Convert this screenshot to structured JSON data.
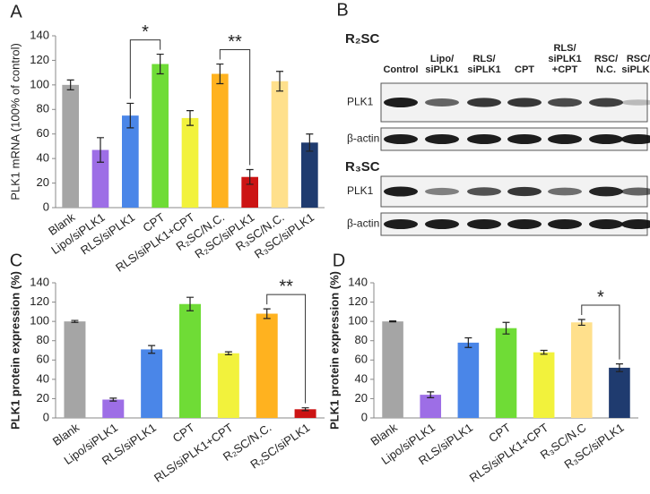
{
  "chart_data": [
    {
      "type": "bar",
      "panel_label": "A",
      "y_label": "PLK1 mRNA (100% of control)",
      "categories": [
        "Blank",
        "Lipo/siPLK1",
        "RLS/siPLK1",
        "CPT",
        "RLS/siPLK1+CPT",
        "R₂SC/N.C.",
        "R₂SC/siPLK1",
        "R₃SC/N.C.",
        "R₃SC/siPLK1"
      ],
      "values": [
        100,
        47,
        75,
        117,
        73,
        109,
        25,
        103,
        53
      ],
      "errors": [
        4,
        10,
        10,
        8,
        6,
        8,
        6,
        8,
        7
      ],
      "colors": [
        "#a5a5a5",
        "#9d6ee6",
        "#4a86e8",
        "#6fdc36",
        "#f2f23c",
        "#ffb21f",
        "#cc1414",
        "#ffe08c",
        "#1f3b6f"
      ],
      "ylim": [
        0,
        140
      ],
      "yticks": [
        0,
        20,
        40,
        60,
        80,
        100,
        120,
        140
      ],
      "annotations": [
        {
          "text": "*",
          "between": [
            "RLS/siPLK1",
            "CPT"
          ]
        },
        {
          "text": "**",
          "between": [
            "R₂SC/N.C.",
            "R₂SC/siPLK1"
          ]
        }
      ]
    },
    {
      "type": "bar",
      "panel_label": "C",
      "y_label": "PLK1 protein expression (%)",
      "categories": [
        "Blank",
        "Lipo/siPLK1",
        "RLS/siPLK1",
        "CPT",
        "RLS/siPLK1+CPT",
        "R₂SC/N.C.",
        "R₂SC/siPLK1"
      ],
      "values": [
        100,
        19,
        71,
        118,
        67,
        108,
        9
      ],
      "errors": [
        1,
        1.5,
        4,
        7,
        1.5,
        5,
        1.5
      ],
      "colors": [
        "#a5a5a5",
        "#9d6ee6",
        "#4a86e8",
        "#6fdc36",
        "#f2f23c",
        "#ffb21f",
        "#cc1414"
      ],
      "ylim": [
        0,
        140
      ],
      "yticks": [
        0,
        20,
        40,
        60,
        80,
        100,
        120,
        140
      ],
      "annotations": [
        {
          "text": "**",
          "between": [
            "R₂SC/N.C.",
            "R₂SC/siPLK1"
          ]
        }
      ]
    },
    {
      "type": "bar",
      "panel_label": "D",
      "y_label": "PLK1 protein expression (%)",
      "categories": [
        "Blank",
        "Lipo/siPLK1",
        "RLS/siPLK1",
        "CPT",
        "RLS/siPLK1+CPT",
        "R₃SC/N.C",
        "R₃SC/siPLK1"
      ],
      "values": [
        100,
        24,
        78,
        93,
        68,
        99,
        52
      ],
      "errors": [
        0.5,
        3,
        5,
        6,
        2,
        3,
        4
      ],
      "colors": [
        "#a5a5a5",
        "#9d6ee6",
        "#4a86e8",
        "#6fdc36",
        "#f2f23c",
        "#ffe08c",
        "#1f3b6f"
      ],
      "ylim": [
        0,
        140
      ],
      "yticks": [
        0,
        20,
        40,
        60,
        80,
        100,
        120,
        140
      ],
      "annotations": [
        {
          "text": "*",
          "between": [
            "R₃SC/N.C",
            "R₃SC/siPLK1"
          ]
        }
      ]
    }
  ],
  "blot": {
    "panel_label": "B",
    "column_labels": [
      [
        "Control"
      ],
      [
        "Lipo/",
        "siPLK1"
      ],
      [
        "RLS/",
        "siPLK1"
      ],
      [
        "CPT"
      ],
      [
        "RLS/",
        "siPLK1",
        "+CPT"
      ],
      [
        "RSC/",
        "N.C."
      ],
      [
        "RSC/",
        "siPLK1"
      ]
    ],
    "groups": [
      {
        "title": "R₂SC",
        "rows": [
          "PLK1",
          "β-actin"
        ]
      },
      {
        "title": "R₃SC",
        "rows": [
          "PLK1",
          "β-actin"
        ]
      }
    ]
  }
}
